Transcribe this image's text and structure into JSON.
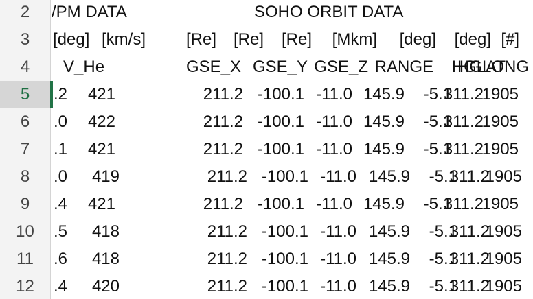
{
  "sheet": {
    "title_rows": [
      {
        "row": "2",
        "cells": [
          "/PM DATA",
          "SOHO ORBIT DATA"
        ]
      },
      {
        "row": "3",
        "cells": [
          "[deg]",
          "[km/s]",
          "[Re]",
          "[Re]",
          "[Re]",
          "[Mkm]",
          "[deg]",
          "[deg]",
          "[#]"
        ]
      },
      {
        "row": "4",
        "cells": [
          "V_He",
          "GSE_X",
          "GSE_Y",
          "GSE_Z",
          "RANGE",
          "HGLAT",
          "HGLONG"
        ]
      }
    ],
    "data_rows": [
      {
        "row": "5",
        "cells": [
          ".2",
          "421",
          "211.2",
          "-100.1",
          "-11.0",
          "145.9",
          "-5.1",
          "311.2",
          "1905"
        ]
      },
      {
        "row": "6",
        "cells": [
          ".0",
          "422",
          "211.2",
          "-100.1",
          "-11.0",
          "145.9",
          "-5.1",
          "311.2",
          "1905"
        ]
      },
      {
        "row": "7",
        "cells": [
          ".1",
          "421",
          "211.2",
          "-100.1",
          "-11.0",
          "145.9",
          "-5.1",
          "311.2",
          "1905"
        ]
      },
      {
        "row": "8",
        "cells": [
          ".0",
          "419",
          "211.2",
          "-100.1",
          "-11.0",
          "145.9",
          "-5.1",
          "311.2",
          "1905"
        ]
      },
      {
        "row": "9",
        "cells": [
          ".4",
          "421",
          "211.2",
          "-100.1",
          "-11.0",
          "145.9",
          "-5.1",
          "311.2",
          "1905"
        ]
      },
      {
        "row": "10",
        "cells": [
          ".5",
          "418",
          "211.2",
          "-100.1",
          "-11.0",
          "145.9",
          "-5.1",
          "311.2",
          "1905"
        ]
      },
      {
        "row": "11",
        "cells": [
          ".6",
          "418",
          "211.2",
          "-100.1",
          "-11.0",
          "145.9",
          "-5.1",
          "311.2",
          "1905"
        ]
      },
      {
        "row": "12",
        "cells": [
          ".4",
          "420",
          "211.2",
          "-100.1",
          "-11.0",
          "145.9",
          "-5.1",
          "311.2",
          "1905"
        ]
      }
    ],
    "active_row": "5",
    "colors": {
      "header_bg": "#f3f3f3",
      "active_header_bg": "#d6d6d6",
      "active_accent": "#217346",
      "text": "#111111"
    }
  }
}
